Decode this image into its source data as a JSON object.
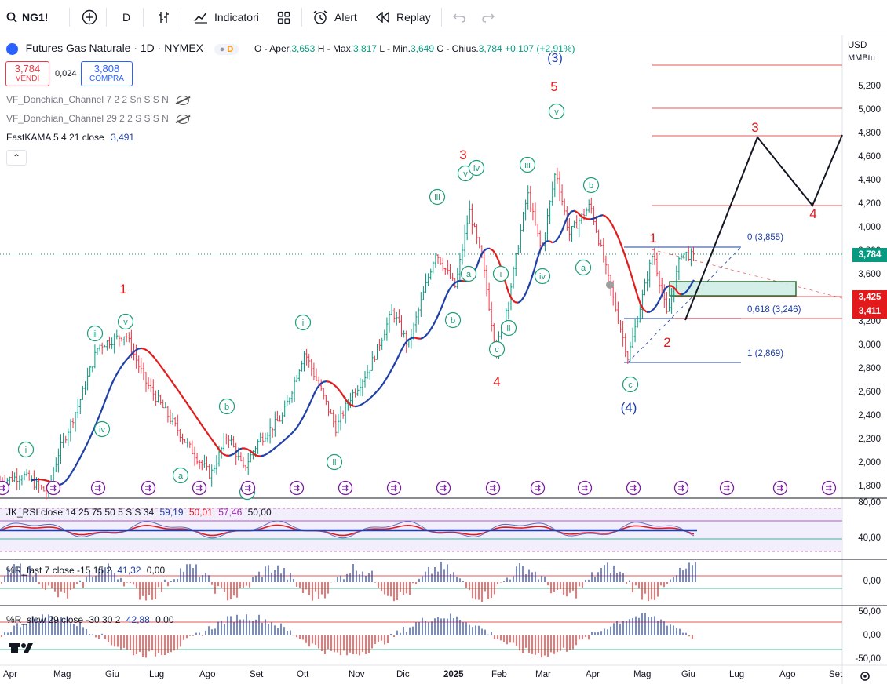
{
  "toolbar": {
    "symbol": "NG1!",
    "interval": "D",
    "indicators_label": "Indicatori",
    "alert_label": "Alert",
    "replay_label": "Replay"
  },
  "legend": {
    "title": "Futures Gas Naturale · 1D · NYMEX",
    "o_label": "O - Aper.",
    "o": "3,653",
    "h_label": "H - Max.",
    "h": "3,817",
    "l_label": "L - Min.",
    "l": "3,649",
    "c_label": "C - Chius.",
    "c": "3,784",
    "change": "+0,107 (+2,91%)",
    "sell_price": "3,784",
    "sell_label": "VENDI",
    "spread": "0,024",
    "buy_price": "3,808",
    "buy_label": "COMPRA"
  },
  "indicators": [
    {
      "name": "VF_Donchian_Channel 7 2 2 Sn S S N"
    },
    {
      "name": "VF_Donchian_Channel 29 2 2 S S S N"
    },
    {
      "name": "FastKAMA 5 4 21 close",
      "value": "3,491"
    }
  ],
  "price_axis": {
    "currency": "USD",
    "unit": "MMBtu",
    "ticks": [
      "5,200",
      "5,000",
      "4,800",
      "4,600",
      "4,400",
      "4,200",
      "4,000",
      "3,800",
      "3,600",
      "3,400",
      "3,200",
      "3,000",
      "2,800",
      "2,600",
      "2,400",
      "2,200",
      "2,000",
      "1,800"
    ],
    "last_price": "3,784",
    "tag_1": "3,425",
    "tag_2": "3,411"
  },
  "time_axis": [
    "Apr",
    "Mag",
    "Giu",
    "Lug",
    "Ago",
    "Set",
    "Ott",
    "Nov",
    "Dic",
    "2025",
    "Feb",
    "Mar",
    "Apr",
    "Mag",
    "Giu",
    "Lug",
    "Ago",
    "Set"
  ],
  "fib_labels": {
    "f0": "0 (3,855)",
    "f618": "0,618 (3,246)",
    "f1": "1 (2,869)"
  },
  "wave_labels": {
    "red": [
      "1",
      "3",
      "4",
      "5",
      "1",
      "2",
      "3",
      "4"
    ],
    "blue": [
      "(3)",
      "(4)"
    ],
    "green": [
      "i",
      "iii",
      "v",
      "iv",
      "a",
      "b",
      "c",
      "i",
      "ii",
      "iii",
      "v",
      "b",
      "a",
      "iv",
      "ii",
      "i",
      "c",
      "iii",
      "v",
      "iv",
      "b",
      "a",
      "c"
    ]
  },
  "rsi": {
    "label": "JK_RSI close 14 25 75 50 5 S S 34",
    "v1": "59,19",
    "v2": "50,01",
    "v3": "57,46",
    "v4": "50,00",
    "ticks": [
      "80,00",
      "40,00"
    ]
  },
  "r_fast": {
    "label": "%R_fast 7 close -15 15 2",
    "v1": "41,32",
    "v2": "0,00",
    "ticks": [
      "0,00"
    ]
  },
  "r_slow": {
    "label": "%R_slow 29 close -30 30 2",
    "v1": "42,88",
    "v2": "0,00",
    "ticks": [
      "50,00",
      "0,00",
      "-50,00"
    ]
  },
  "colors": {
    "up": "#089981",
    "down": "#f23645",
    "kama_up": "#1e3fa6",
    "kama_down": "#e31a1c",
    "green_label": "#1b9e77",
    "red_label": "#e31a1c",
    "blue_label": "#1e3fa6"
  }
}
